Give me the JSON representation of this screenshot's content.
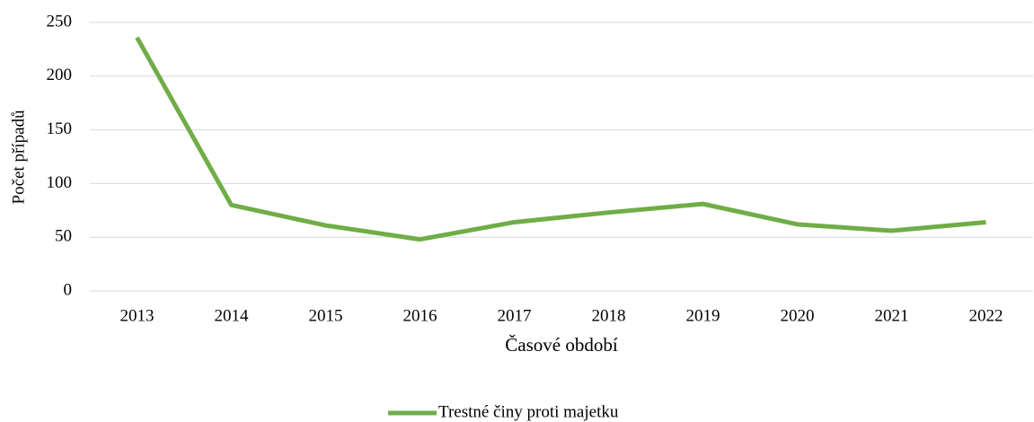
{
  "chart_data": {
    "type": "line",
    "y_label": "Počet případů",
    "x_label": "Časové období",
    "categories": [
      "2013",
      "2014",
      "2015",
      "2016",
      "2017",
      "2018",
      "2019",
      "2020",
      "2021",
      "2022"
    ],
    "series": [
      {
        "name": "Trestné činy proti majetku",
        "color": "#70ad47",
        "values": [
          236,
          80,
          61,
          48,
          64,
          73,
          81,
          62,
          56,
          64
        ]
      }
    ],
    "ylim": [
      0,
      250
    ],
    "yticks": [
      0,
      50,
      100,
      150,
      200,
      250
    ],
    "grid": true,
    "legend": "bottom"
  }
}
